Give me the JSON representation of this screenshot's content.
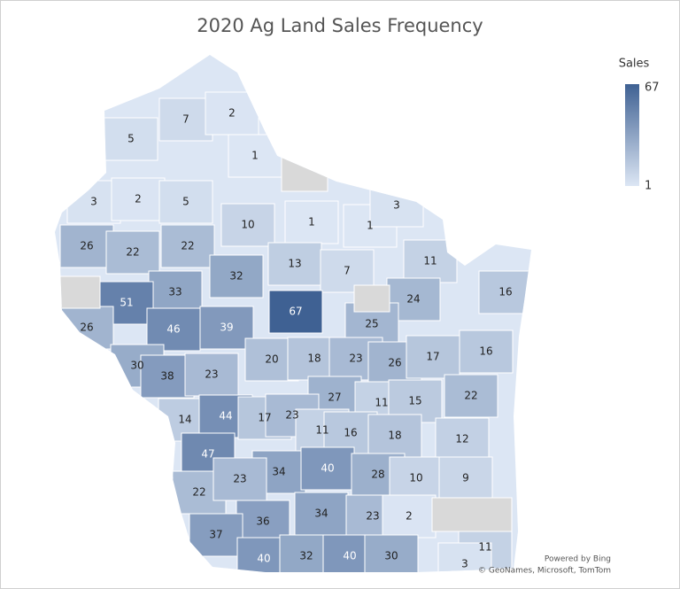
{
  "chart_data": {
    "type": "choropleth",
    "title": "2020 Ag Land Sales Frequency",
    "legend_title": "Sales",
    "color_range": {
      "min": 1,
      "max": 67,
      "colors": [
        "#dce6f4",
        "#3f6193"
      ]
    },
    "no_data_color": "#d9d9d9",
    "values": [
      5,
      7,
      2,
      1,
      3,
      2,
      5,
      10,
      1,
      1,
      3,
      11,
      26,
      22,
      22,
      13,
      7,
      32,
      33,
      51,
      67,
      24,
      16,
      26,
      46,
      39,
      25,
      20,
      18,
      23,
      26,
      17,
      16,
      30,
      38,
      23,
      27,
      11,
      15,
      22,
      14,
      44,
      17,
      23,
      11,
      16,
      18,
      12,
      47,
      34,
      40,
      28,
      10,
      9,
      22,
      23,
      36,
      34,
      23,
      2,
      37,
      40,
      32,
      40,
      30,
      11,
      3
    ],
    "attribution": [
      "Powered by Bing",
      "© GeoNames, Microsoft, TomTom"
    ]
  }
}
